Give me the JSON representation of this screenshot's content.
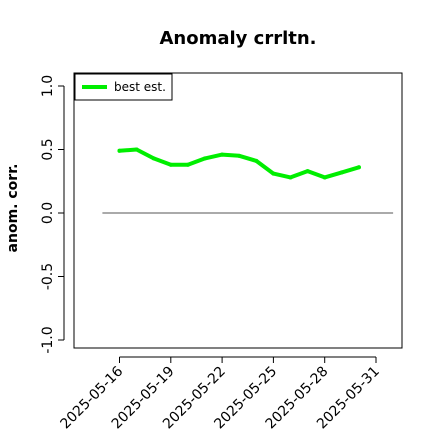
{
  "chart_data": {
    "type": "line",
    "title": "Anomaly crrltn.",
    "xlabel": "",
    "ylabel": "anom. corr.",
    "ylim": [
      -1.0,
      1.0
    ],
    "yticks": [
      -1.0,
      -0.5,
      0.0,
      0.5,
      1.0
    ],
    "ytick_labels": [
      "-1.0",
      "-0.5",
      "0.0",
      "0.5",
      "1.0"
    ],
    "xlim": [
      "2025-05-14",
      "2025-06-01"
    ],
    "xticks": [
      "2025-05-16",
      "2025-05-19",
      "2025-05-22",
      "2025-05-25",
      "2025-05-28",
      "2025-05-31"
    ],
    "reference_line": {
      "y": 0.0,
      "x_from": "2025-05-15",
      "x_to": "2025-06-01",
      "color": "#555555"
    },
    "legend": {
      "position": "top-left"
    },
    "series": [
      {
        "name": "best est.",
        "color": "#00ee00",
        "points": [
          {
            "x": "2025-05-16",
            "y": 0.49
          },
          {
            "x": "2025-05-17",
            "y": 0.5
          },
          {
            "x": "2025-05-18",
            "y": 0.43
          },
          {
            "x": "2025-05-19",
            "y": 0.38
          },
          {
            "x": "2025-05-20",
            "y": 0.38
          },
          {
            "x": "2025-05-21",
            "y": 0.43
          },
          {
            "x": "2025-05-22",
            "y": 0.46
          },
          {
            "x": "2025-05-23",
            "y": 0.45
          },
          {
            "x": "2025-05-24",
            "y": 0.41
          },
          {
            "x": "2025-05-25",
            "y": 0.31
          },
          {
            "x": "2025-05-26",
            "y": 0.28
          },
          {
            "x": "2025-05-27",
            "y": 0.33
          },
          {
            "x": "2025-05-28",
            "y": 0.28
          },
          {
            "x": "2025-05-29",
            "y": 0.32
          },
          {
            "x": "2025-05-30",
            "y": 0.36
          }
        ]
      }
    ]
  }
}
